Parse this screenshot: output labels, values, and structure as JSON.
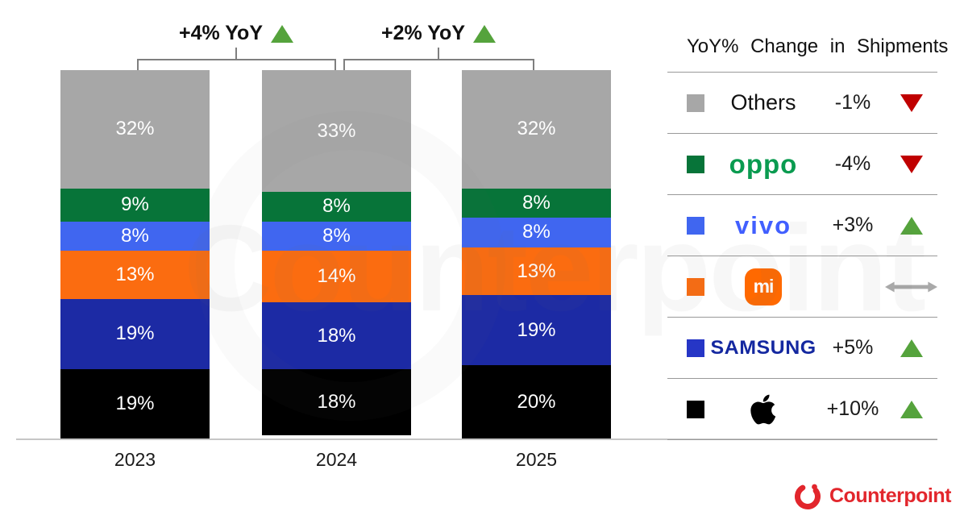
{
  "annotations": [
    {
      "text": "+4% YoY",
      "direction": "up"
    },
    {
      "text": "+2% YoY",
      "direction": "up"
    }
  ],
  "chart_data": {
    "type": "bar",
    "subtype": "stacked-100-percent",
    "title": "",
    "categories": [
      "2023",
      "2024",
      "2025"
    ],
    "unit": "%",
    "ylim": [
      0,
      100
    ],
    "grid": false,
    "legend_position": "right",
    "series": [
      {
        "name": "Others",
        "color": "#a7a7a7",
        "values": [
          32,
          33,
          32
        ]
      },
      {
        "name": "OPPO",
        "color": "#077439",
        "values": [
          9,
          8,
          8
        ]
      },
      {
        "name": "vivo",
        "color": "#4066f0",
        "values": [
          8,
          8,
          8
        ]
      },
      {
        "name": "Xiaomi",
        "color": "#fb6c10",
        "values": [
          13,
          14,
          13
        ]
      },
      {
        "name": "Samsung",
        "color": "#1c2aa4",
        "values": [
          19,
          18,
          19
        ]
      },
      {
        "name": "Apple",
        "color": "#000000",
        "values": [
          19,
          18,
          20
        ]
      }
    ],
    "stack_order_top_to_bottom": [
      "Others",
      "OPPO",
      "vivo",
      "Xiaomi",
      "Samsung",
      "Apple"
    ],
    "growth_annotations": [
      {
        "between": [
          "2023",
          "2024"
        ],
        "text": "+4% YoY"
      },
      {
        "between": [
          "2024",
          "2025"
        ],
        "text": "+2% YoY"
      }
    ]
  },
  "legend": {
    "title": "YoY% Change in Shipments",
    "arrow_colors": {
      "up": "#55a33c",
      "down": "#c00000",
      "flat": "#a9a9a9"
    },
    "rows": [
      {
        "brand": "Others",
        "label": "Others",
        "change": "-1%",
        "direction": "down",
        "swatch": "#a7a7a7"
      },
      {
        "brand": "OPPO",
        "logo_text": "oppo",
        "change": "-4%",
        "direction": "down",
        "swatch": "#077439",
        "logo_color": "#0a9b50"
      },
      {
        "brand": "vivo",
        "logo_text": "vivo",
        "change": "+3%",
        "direction": "up",
        "swatch": "#4066f0",
        "logo_color": "#415fff"
      },
      {
        "brand": "Xiaomi",
        "logo_text": "mi",
        "change": "",
        "direction": "flat",
        "swatch": "#fb6c10",
        "logo_color": "#ff6900"
      },
      {
        "brand": "Samsung",
        "logo_text": "SAMSUNG",
        "change": "+5%",
        "direction": "up",
        "swatch": "#2636c6",
        "logo_color": "#1428a0"
      },
      {
        "brand": "Apple",
        "logo_icon": "apple-logo",
        "change": "+10%",
        "direction": "up",
        "swatch": "#000000"
      }
    ]
  },
  "watermark": {
    "text": "Counterpoint"
  },
  "footer": {
    "brand_name": "Counterpoint",
    "brand_color": "#e2262c"
  }
}
